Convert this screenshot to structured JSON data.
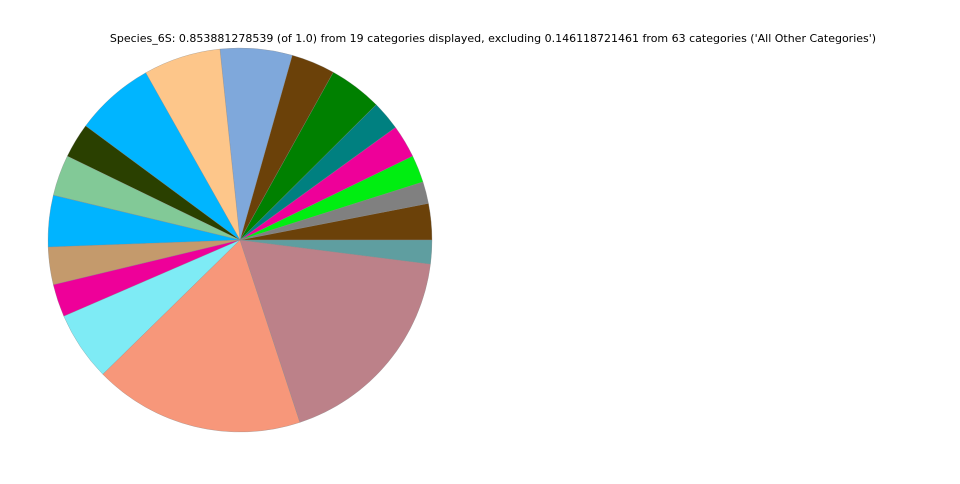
{
  "chart_data": {
    "type": "pie",
    "title": "Species_6S: 0.853881278539 (of 1.0) from 19 categories displayed, excluding 0.146118721461 from 63 categories ('All Other Categories')",
    "categories": [
      null,
      null,
      null,
      null,
      null,
      null,
      null,
      null,
      null,
      null,
      null,
      null,
      null,
      null,
      null,
      null,
      null,
      null,
      null
    ],
    "values": [
      0.0261,
      0.0157,
      0.0197,
      0.0237,
      0.0211,
      0.0382,
      0.0315,
      0.0517,
      0.0555,
      0.0572,
      0.0251,
      0.0294,
      0.037,
      0.027,
      0.0235,
      0.0498,
      0.1513,
      0.1532,
      0.0171
    ],
    "colors": [
      "#6b4109",
      "#808080",
      "#00ee11",
      "#ee0099",
      "#008080",
      "#008000",
      "#6b4109",
      "#7fa8db",
      "#fdc68a",
      "#00b5ff",
      "#2a4000",
      "#82c997",
      "#00b4ff",
      "#c49a6c",
      "#ee0099",
      "#7eebf5",
      "#f7977a",
      "#bc8189",
      "#5f9ea0"
    ]
  }
}
